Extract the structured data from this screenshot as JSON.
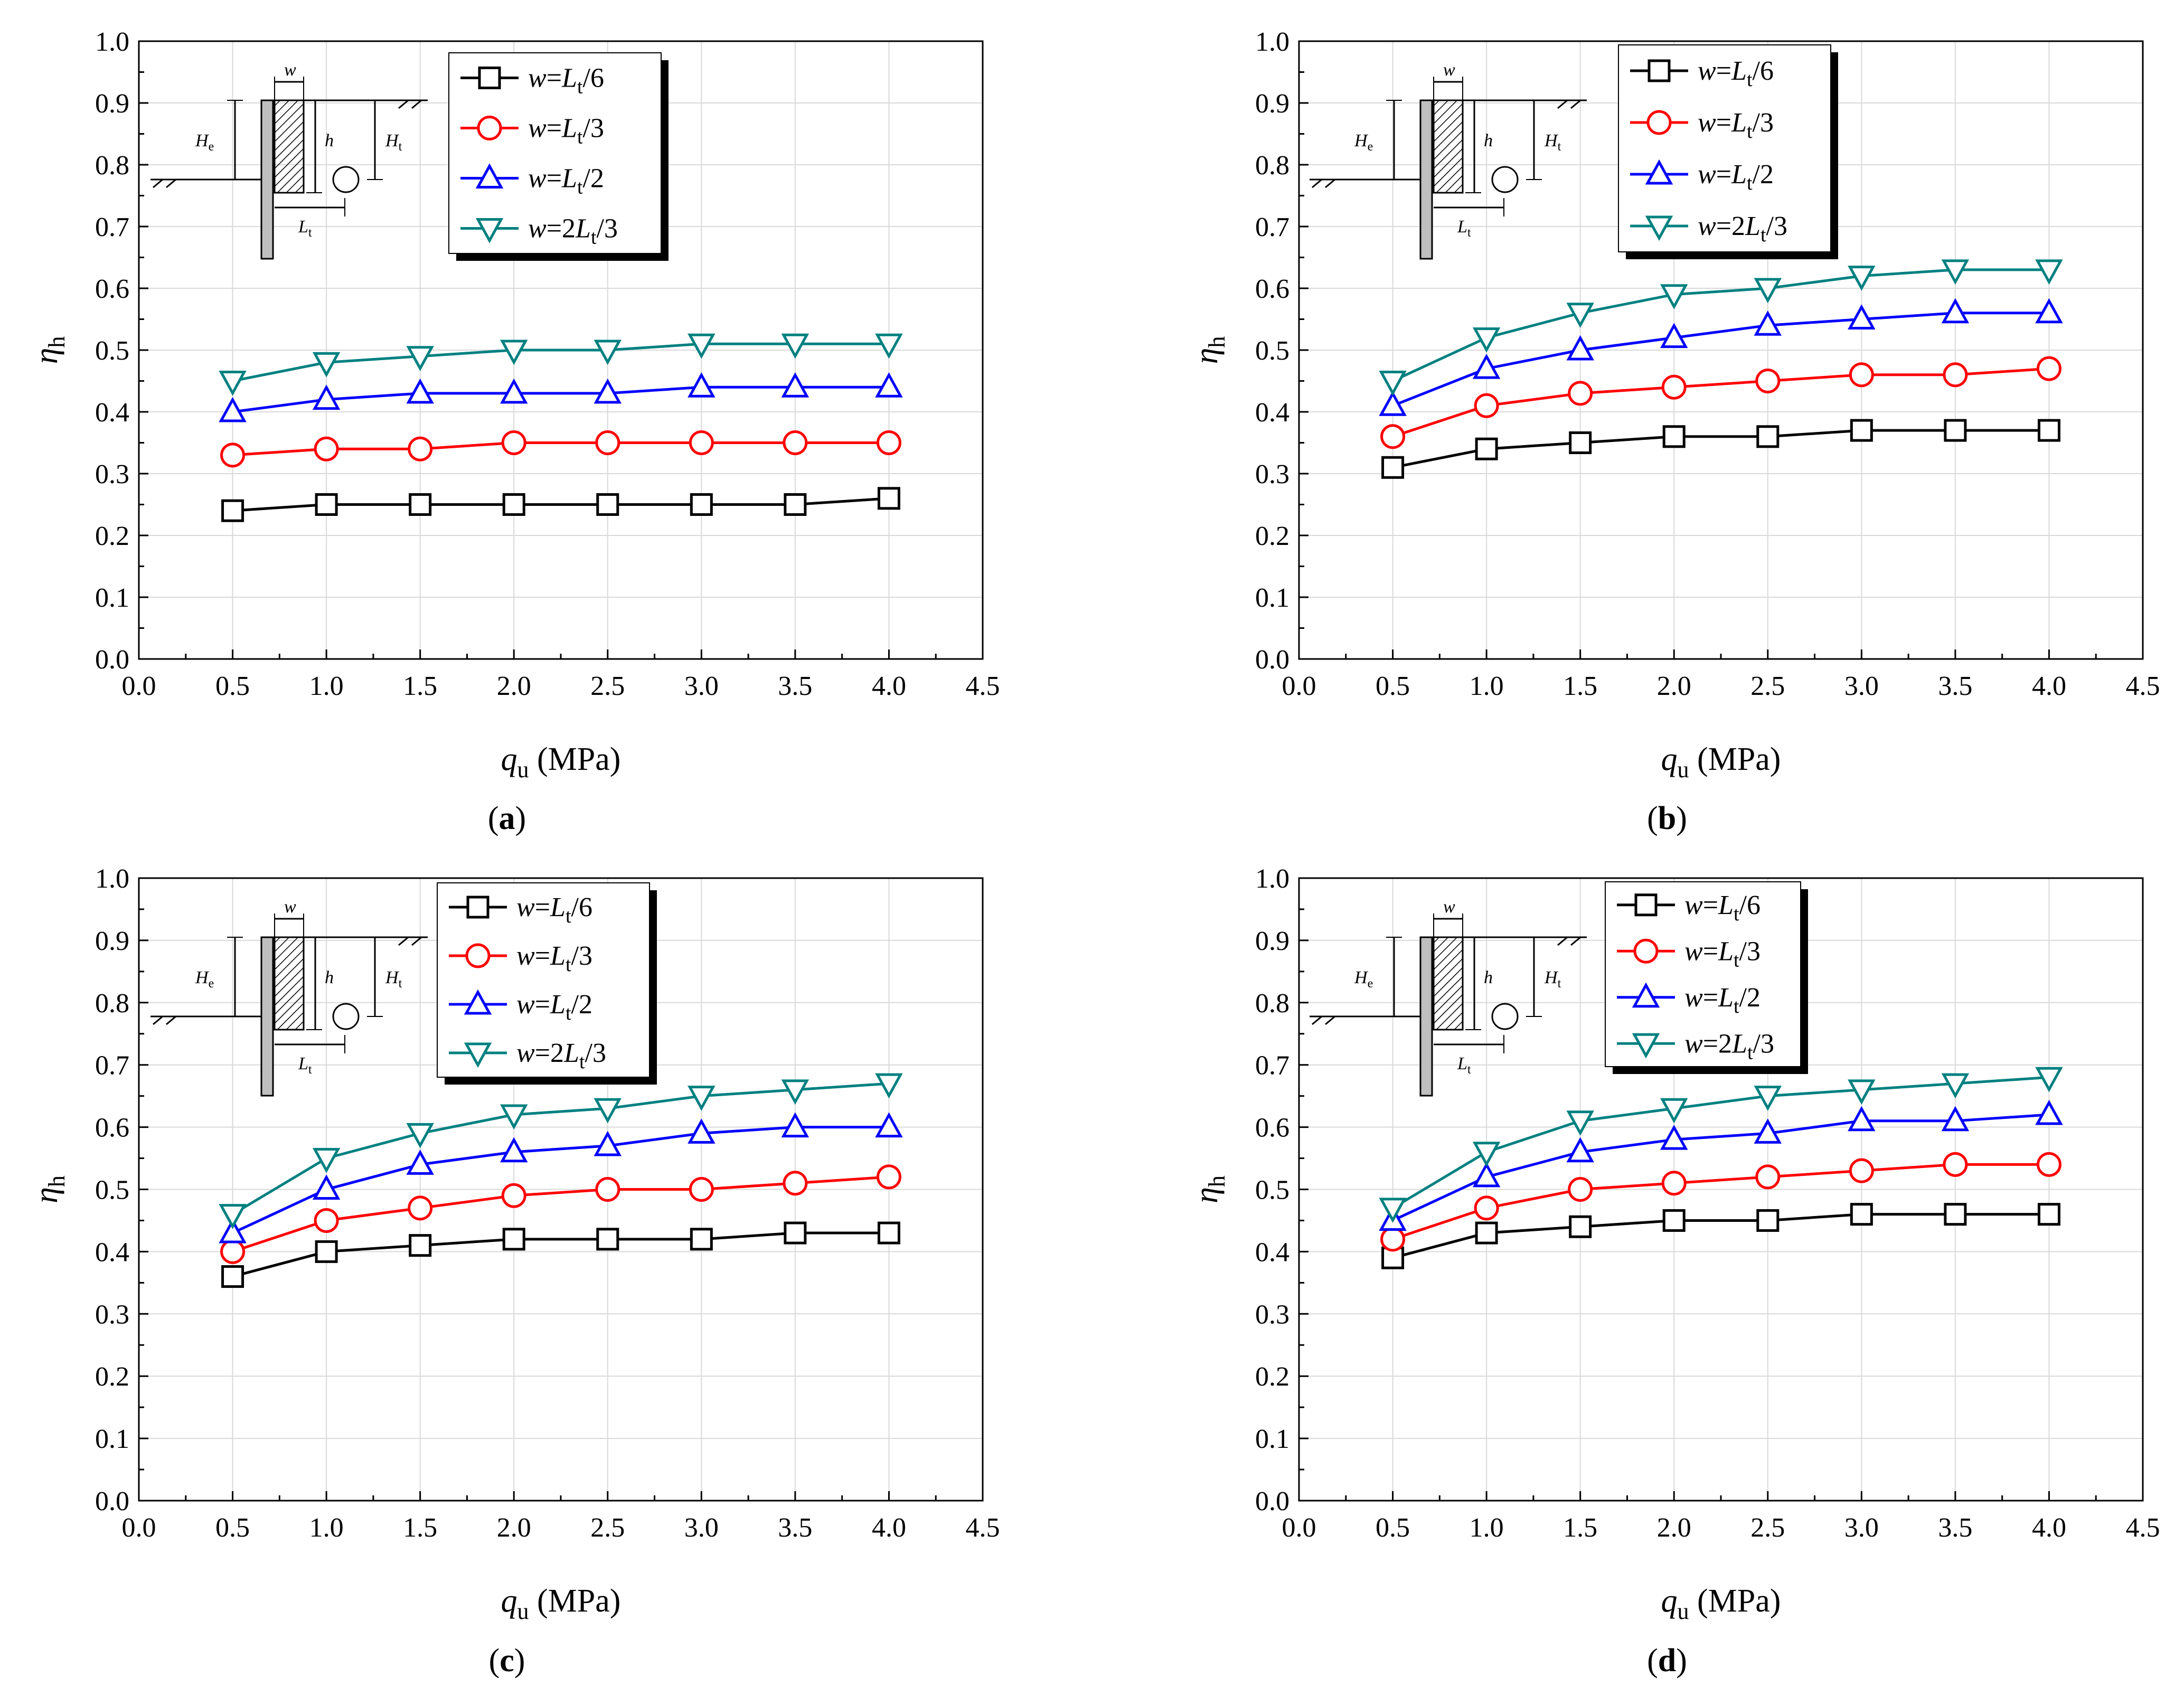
{
  "figure": {
    "ylabel_main": "η",
    "ylabel_sub": "h",
    "xlabel_main": "q",
    "xlabel_sub": "u",
    "xlabel_unit": " (MPa)",
    "legend_prefix": "w=",
    "schematic": {
      "w": "w",
      "h": "h",
      "He_main": "H",
      "He_sub": "e",
      "Ht_main": "H",
      "Ht_sub": "t",
      "Lt_main": "L",
      "Lt_sub": "t"
    }
  },
  "chart_data": [
    {
      "type": "line",
      "panel_label": "a",
      "title": "",
      "xlabel": "qu (MPa)",
      "ylabel": "ηh",
      "xlim": [
        0.0,
        4.5
      ],
      "ylim": [
        0.0,
        1.0
      ],
      "x_ticks": [
        "0.0",
        "0.5",
        "1.0",
        "1.5",
        "2.0",
        "2.5",
        "3.0",
        "3.5",
        "4.0",
        "4.5"
      ],
      "y_ticks": [
        "0.0",
        "0.1",
        "0.2",
        "0.3",
        "0.4",
        "0.5",
        "0.6",
        "0.7",
        "0.8",
        "0.9",
        "1.0"
      ],
      "grid": true,
      "legend_position": "top-right",
      "x": [
        0.5,
        1.0,
        1.5,
        2.0,
        2.5,
        3.0,
        3.5,
        4.0
      ],
      "series": [
        {
          "name": "w=Lt/6",
          "label_main": "L",
          "label_sub": "t",
          "label_tail": "/6",
          "label_lead": "",
          "color": "#000000",
          "marker": "square",
          "values": [
            0.24,
            0.25,
            0.25,
            0.25,
            0.25,
            0.25,
            0.25,
            0.26
          ]
        },
        {
          "name": "w=Lt/3",
          "label_main": "L",
          "label_sub": "t",
          "label_tail": "/3",
          "label_lead": "",
          "color": "#ff0000",
          "marker": "circle",
          "values": [
            0.33,
            0.34,
            0.34,
            0.35,
            0.35,
            0.35,
            0.35,
            0.35
          ]
        },
        {
          "name": "w=Lt/2",
          "label_main": "L",
          "label_sub": "t",
          "label_tail": "/2",
          "label_lead": "",
          "color": "#0000ff",
          "marker": "triangle-up",
          "values": [
            0.4,
            0.42,
            0.43,
            0.43,
            0.43,
            0.44,
            0.44,
            0.44
          ]
        },
        {
          "name": "w=2Lt/3",
          "label_main": "L",
          "label_sub": "t",
          "label_tail": "/3",
          "label_lead": "2",
          "color": "#008080",
          "marker": "triangle-down",
          "values": [
            0.45,
            0.48,
            0.49,
            0.5,
            0.5,
            0.51,
            0.51,
            0.51
          ]
        }
      ]
    },
    {
      "type": "line",
      "panel_label": "b",
      "title": "",
      "xlabel": "qu (MPa)",
      "ylabel": "ηh",
      "xlim": [
        0.0,
        4.5
      ],
      "ylim": [
        0.0,
        1.0
      ],
      "x_ticks": [
        "0.0",
        "0.5",
        "1.0",
        "1.5",
        "2.0",
        "2.5",
        "3.0",
        "3.5",
        "4.0",
        "4.5"
      ],
      "y_ticks": [
        "0.0",
        "0.1",
        "0.2",
        "0.3",
        "0.4",
        "0.5",
        "0.6",
        "0.7",
        "0.8",
        "0.9",
        "1.0"
      ],
      "grid": true,
      "legend_position": "top-center",
      "x": [
        0.5,
        1.0,
        1.5,
        2.0,
        2.5,
        3.0,
        3.5,
        4.0
      ],
      "series": [
        {
          "name": "w=Lt/6",
          "label_main": "L",
          "label_sub": "t",
          "label_tail": "/6",
          "label_lead": "",
          "color": "#000000",
          "marker": "square",
          "values": [
            0.31,
            0.34,
            0.35,
            0.36,
            0.36,
            0.37,
            0.37,
            0.37
          ]
        },
        {
          "name": "w=Lt/3",
          "label_main": "L",
          "label_sub": "t",
          "label_tail": "/3",
          "label_lead": "",
          "color": "#ff0000",
          "marker": "circle",
          "values": [
            0.36,
            0.41,
            0.43,
            0.44,
            0.45,
            0.46,
            0.46,
            0.47
          ]
        },
        {
          "name": "w=Lt/2",
          "label_main": "L",
          "label_sub": "t",
          "label_tail": "/2",
          "label_lead": "",
          "color": "#0000ff",
          "marker": "triangle-up",
          "values": [
            0.41,
            0.47,
            0.5,
            0.52,
            0.54,
            0.55,
            0.56,
            0.56
          ]
        },
        {
          "name": "w=2Lt/3",
          "label_main": "L",
          "label_sub": "t",
          "label_tail": "/3",
          "label_lead": "2",
          "color": "#008080",
          "marker": "triangle-down",
          "values": [
            0.45,
            0.52,
            0.56,
            0.59,
            0.6,
            0.62,
            0.63,
            0.63
          ]
        }
      ]
    },
    {
      "type": "line",
      "panel_label": "c",
      "title": "",
      "xlabel": "qu (MPa)",
      "ylabel": "ηh",
      "xlim": [
        0.0,
        4.5
      ],
      "ylim": [
        0.0,
        1.0
      ],
      "x_ticks": [
        "0.0",
        "0.5",
        "1.0",
        "1.5",
        "2.0",
        "2.5",
        "3.0",
        "3.5",
        "4.0",
        "4.5"
      ],
      "y_ticks": [
        "0.0",
        "0.1",
        "0.2",
        "0.3",
        "0.4",
        "0.5",
        "0.6",
        "0.7",
        "0.8",
        "0.9",
        "1.0"
      ],
      "grid": true,
      "legend_position": "top-center",
      "x": [
        0.5,
        1.0,
        1.5,
        2.0,
        2.5,
        3.0,
        3.5,
        4.0
      ],
      "series": [
        {
          "name": "w=Lt/6",
          "label_main": "L",
          "label_sub": "t",
          "label_tail": "/6",
          "label_lead": "",
          "color": "#000000",
          "marker": "square",
          "values": [
            0.36,
            0.4,
            0.41,
            0.42,
            0.42,
            0.42,
            0.43,
            0.43
          ]
        },
        {
          "name": "w=Lt/3",
          "label_main": "L",
          "label_sub": "t",
          "label_tail": "/3",
          "label_lead": "",
          "color": "#ff0000",
          "marker": "circle",
          "values": [
            0.4,
            0.45,
            0.47,
            0.49,
            0.5,
            0.5,
            0.51,
            0.52
          ]
        },
        {
          "name": "w=Lt/2",
          "label_main": "L",
          "label_sub": "t",
          "label_tail": "/2",
          "label_lead": "",
          "color": "#0000ff",
          "marker": "triangle-up",
          "values": [
            0.43,
            0.5,
            0.54,
            0.56,
            0.57,
            0.59,
            0.6,
            0.6
          ]
        },
        {
          "name": "w=2Lt/3",
          "label_main": "L",
          "label_sub": "t",
          "label_tail": "/3",
          "label_lead": "2",
          "color": "#008080",
          "marker": "triangle-down",
          "values": [
            0.46,
            0.55,
            0.59,
            0.62,
            0.63,
            0.65,
            0.66,
            0.67
          ]
        }
      ]
    },
    {
      "type": "line",
      "panel_label": "d",
      "title": "",
      "xlabel": "qu (MPa)",
      "ylabel": "ηh",
      "xlim": [
        0.0,
        4.5
      ],
      "ylim": [
        0.0,
        1.0
      ],
      "x_ticks": [
        "0.0",
        "0.5",
        "1.0",
        "1.5",
        "2.0",
        "2.5",
        "3.0",
        "3.5",
        "4.0",
        "4.5"
      ],
      "y_ticks": [
        "0.0",
        "0.1",
        "0.2",
        "0.3",
        "0.4",
        "0.5",
        "0.6",
        "0.7",
        "0.8",
        "0.9",
        "1.0"
      ],
      "grid": true,
      "legend_position": "top-center",
      "x": [
        0.5,
        1.0,
        1.5,
        2.0,
        2.5,
        3.0,
        3.5,
        4.0
      ],
      "series": [
        {
          "name": "w=Lt/6",
          "label_main": "L",
          "label_sub": "t",
          "label_tail": "/6",
          "label_lead": "",
          "color": "#000000",
          "marker": "square",
          "values": [
            0.39,
            0.43,
            0.44,
            0.45,
            0.45,
            0.46,
            0.46,
            0.46
          ]
        },
        {
          "name": "w=Lt/3",
          "label_main": "L",
          "label_sub": "t",
          "label_tail": "/3",
          "label_lead": "",
          "color": "#ff0000",
          "marker": "circle",
          "values": [
            0.42,
            0.47,
            0.5,
            0.51,
            0.52,
            0.53,
            0.54,
            0.54
          ]
        },
        {
          "name": "w=Lt/2",
          "label_main": "L",
          "label_sub": "t",
          "label_tail": "/2",
          "label_lead": "",
          "color": "#0000ff",
          "marker": "triangle-up",
          "values": [
            0.45,
            0.52,
            0.56,
            0.58,
            0.59,
            0.61,
            0.61,
            0.62
          ]
        },
        {
          "name": "w=2Lt/3",
          "label_main": "L",
          "label_sub": "t",
          "label_tail": "/3",
          "label_lead": "2",
          "color": "#008080",
          "marker": "triangle-down",
          "values": [
            0.47,
            0.56,
            0.61,
            0.63,
            0.65,
            0.66,
            0.67,
            0.68
          ]
        }
      ]
    }
  ]
}
